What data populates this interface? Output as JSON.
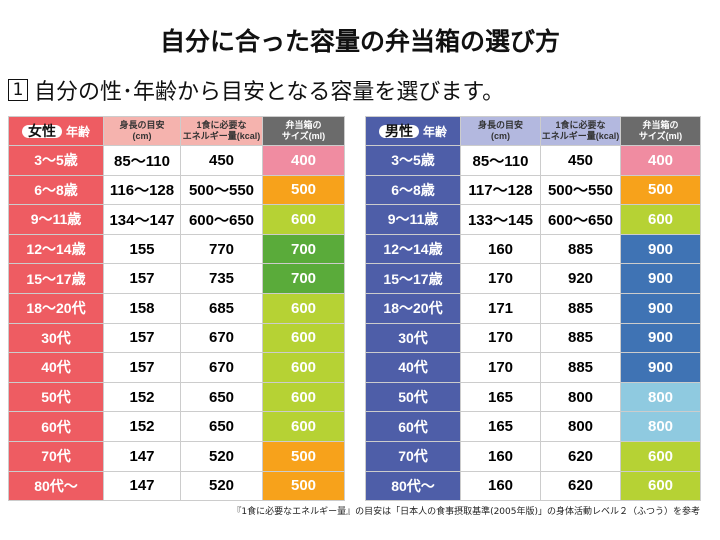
{
  "title": "自分に合った容量の弁当箱の選び方",
  "step": {
    "number": "1",
    "text": "自分の性･年齢から目安となる容量を選びます。"
  },
  "headers": {
    "age": "年齢",
    "height": "身長の目安\n(cm)",
    "energy": "1食に必要な\nエネルギー量(kcal)",
    "size": "弁当箱の\nサイズ(ml)"
  },
  "size_colors": {
    "400": "#f08ca1",
    "500": "#f7a21b",
    "600": "#b6d234",
    "700": "#5aab3a",
    "800": "#8fcae0",
    "900": "#3f73b4"
  },
  "female": {
    "label": "女性",
    "rows": [
      [
        "3～5歳",
        "85～110",
        "450",
        "400"
      ],
      [
        "6～8歳",
        "116～128",
        "500～550",
        "500"
      ],
      [
        "9～11歳",
        "134～147",
        "600～650",
        "600"
      ],
      [
        "12～14歳",
        "155",
        "770",
        "700"
      ],
      [
        "15～17歳",
        "157",
        "735",
        "700"
      ],
      [
        "18～20代",
        "158",
        "685",
        "600"
      ],
      [
        "30代",
        "157",
        "670",
        "600"
      ],
      [
        "40代",
        "157",
        "670",
        "600"
      ],
      [
        "50代",
        "152",
        "650",
        "600"
      ],
      [
        "60代",
        "152",
        "650",
        "600"
      ],
      [
        "70代",
        "147",
        "520",
        "500"
      ],
      [
        "80代～",
        "147",
        "520",
        "500"
      ]
    ]
  },
  "male": {
    "label": "男性",
    "rows": [
      [
        "3～5歳",
        "85～110",
        "450",
        "400"
      ],
      [
        "6～8歳",
        "117～128",
        "500～550",
        "500"
      ],
      [
        "9～11歳",
        "133～145",
        "600～650",
        "600"
      ],
      [
        "12～14歳",
        "160",
        "885",
        "900"
      ],
      [
        "15～17歳",
        "170",
        "920",
        "900"
      ],
      [
        "18～20代",
        "171",
        "885",
        "900"
      ],
      [
        "30代",
        "170",
        "885",
        "900"
      ],
      [
        "40代",
        "170",
        "885",
        "900"
      ],
      [
        "50代",
        "165",
        "800",
        "800"
      ],
      [
        "60代",
        "165",
        "800",
        "800"
      ],
      [
        "70代",
        "160",
        "620",
        "600"
      ],
      [
        "80代～",
        "160",
        "620",
        "600"
      ]
    ]
  },
  "footnote": "『1食に必要なエネルギー量』の目安は「日本人の食事摂取基準(2005年版)」の身体活動レベル２（ふつう）を参考"
}
